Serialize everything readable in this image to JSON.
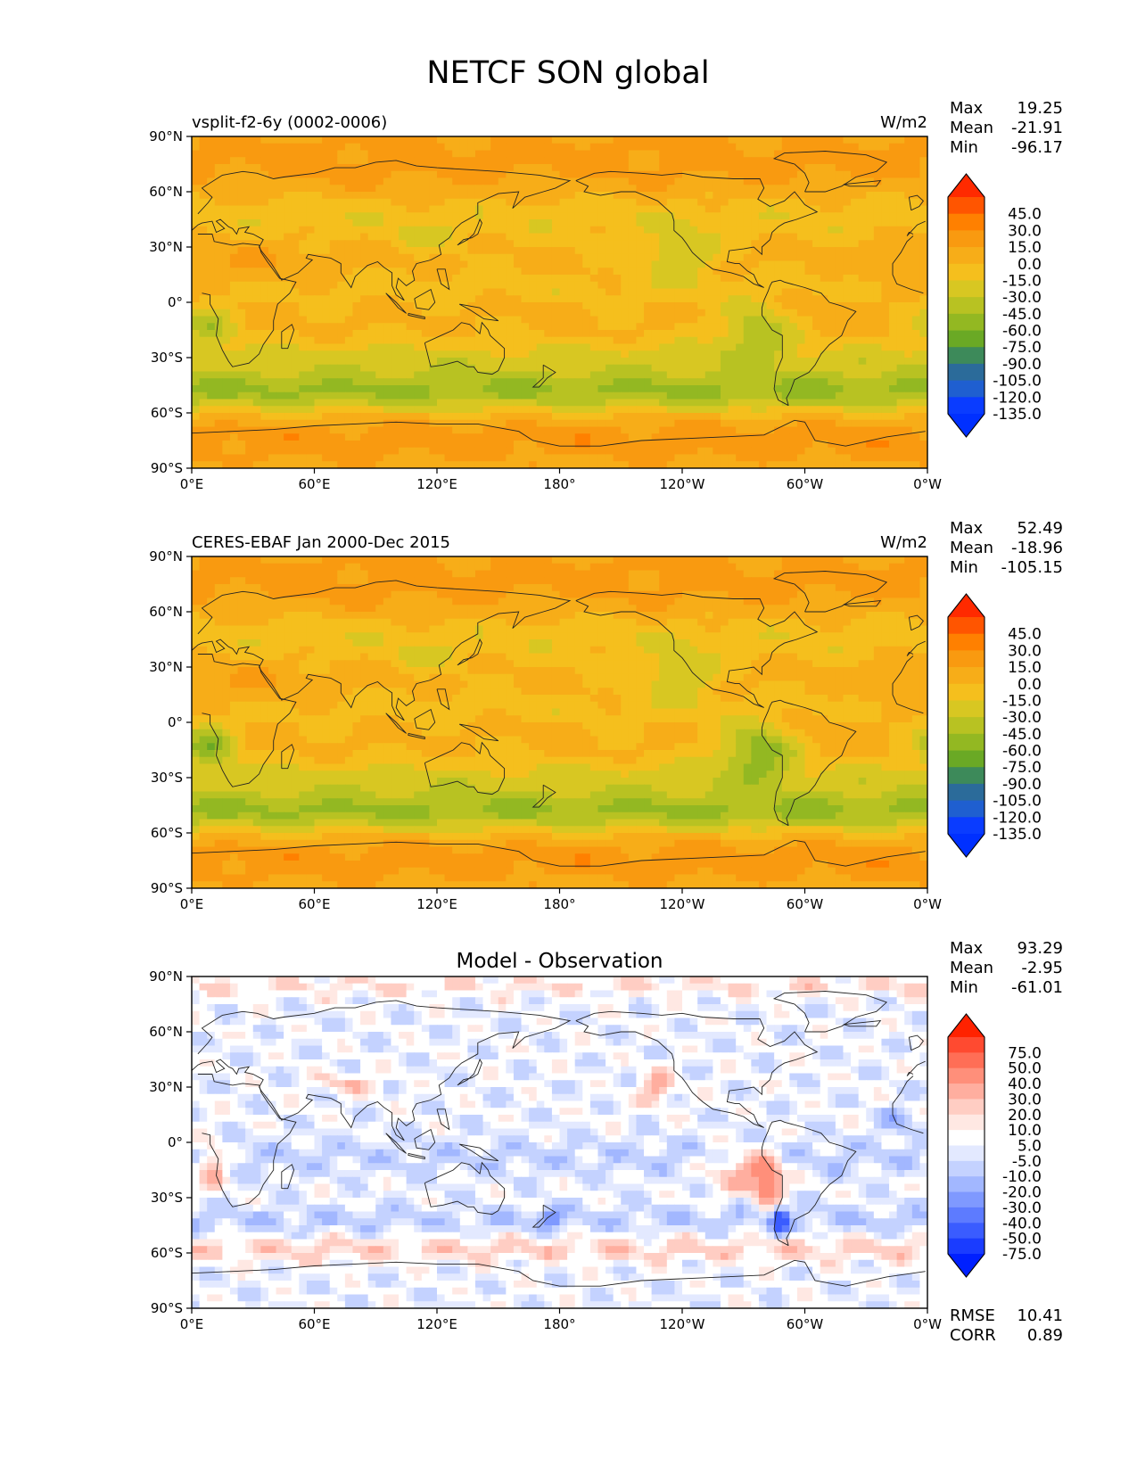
{
  "title": "NETCF SON global",
  "axes": {
    "xticks": [
      "0°E",
      "60°E",
      "120°E",
      "180°",
      "120°W",
      "60°W",
      "0°W"
    ],
    "yticks": [
      "90°N",
      "60°N",
      "30°N",
      "0°",
      "30°S",
      "60°S",
      "90°S"
    ]
  },
  "chart_data": [
    {
      "type": "heatmap",
      "panel": "model",
      "left_title": "vsplit-f2-6y (0002-0006)",
      "center_title": "",
      "units": "W/m2",
      "stats": [
        {
          "label": "Max",
          "value": "19.25"
        },
        {
          "label": "Mean",
          "value": "-21.91"
        },
        {
          "label": "Min",
          "value": "-96.17"
        }
      ],
      "colorbar_levels": [
        "45.0",
        "30.0",
        "15.0",
        "0.0",
        "-15.0",
        "-30.0",
        "-45.0",
        "-60.0",
        "-75.0",
        "-90.0",
        "-105.0",
        "-120.0",
        "-135.0"
      ],
      "colorbar_colors": [
        "#ff2a00",
        "#ff5500",
        "#ff8000",
        "#f99a10",
        "#f7ad18",
        "#f5bf1d",
        "#d8c722",
        "#b8c222",
        "#93b822",
        "#6aa925",
        "#3d8a5a",
        "#2b6b9a",
        "#1f5fd0",
        "#0a3cff",
        "#0030ff"
      ],
      "x_range": [
        0,
        360
      ],
      "y_range": [
        -90,
        90
      ],
      "summary": []
    },
    {
      "type": "heatmap",
      "panel": "observation",
      "left_title": "CERES-EBAF Jan 2000-Dec 2015",
      "center_title": "",
      "units": "W/m2",
      "stats": [
        {
          "label": "Max",
          "value": "52.49"
        },
        {
          "label": "Mean",
          "value": "-18.96"
        },
        {
          "label": "Min",
          "value": "-105.15"
        }
      ],
      "colorbar_levels": [
        "45.0",
        "30.0",
        "15.0",
        "0.0",
        "-15.0",
        "-30.0",
        "-45.0",
        "-60.0",
        "-75.0",
        "-90.0",
        "-105.0",
        "-120.0",
        "-135.0"
      ],
      "colorbar_colors": [
        "#ff2a00",
        "#ff5500",
        "#ff8000",
        "#f99a10",
        "#f7ad18",
        "#f5bf1d",
        "#d8c722",
        "#b8c222",
        "#93b822",
        "#6aa925",
        "#3d8a5a",
        "#2b6b9a",
        "#1f5fd0",
        "#0a3cff",
        "#0030ff"
      ],
      "x_range": [
        0,
        360
      ],
      "y_range": [
        -90,
        90
      ],
      "summary": []
    },
    {
      "type": "heatmap",
      "panel": "difference",
      "left_title": "",
      "center_title": "Model - Observation",
      "units": "",
      "stats": [
        {
          "label": "Max",
          "value": "93.29"
        },
        {
          "label": "Mean",
          "value": "-2.95"
        },
        {
          "label": "Min",
          "value": "-61.01"
        }
      ],
      "colorbar_levels": [
        "75.0",
        "50.0",
        "40.0",
        "30.0",
        "20.0",
        "10.0",
        "5.0",
        "-5.0",
        "-10.0",
        "-20.0",
        "-30.0",
        "-40.0",
        "-50.0",
        "-75.0"
      ],
      "colorbar_colors": [
        "#ff2200",
        "#ff4a30",
        "#ff6e56",
        "#ff8f7a",
        "#ffae9f",
        "#ffcdc3",
        "#ffe8e3",
        "#ffffff",
        "#e3e9ff",
        "#c4d2ff",
        "#a2b7ff",
        "#7f99ff",
        "#5d7bff",
        "#3a5cff",
        "#1a3cff",
        "#0020ff"
      ],
      "x_range": [
        0,
        360
      ],
      "y_range": [
        -90,
        90
      ],
      "summary": [
        {
          "label": "RMSE",
          "value": "10.41"
        },
        {
          "label": "CORR",
          "value": "0.89"
        }
      ]
    }
  ]
}
